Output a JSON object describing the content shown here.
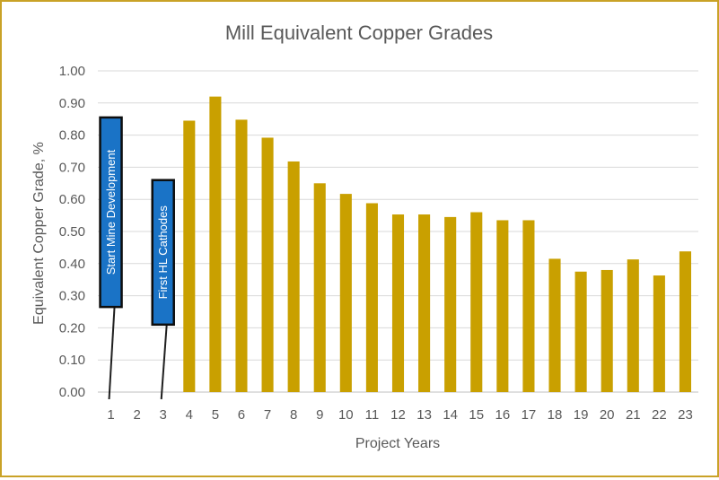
{
  "chart_data": {
    "type": "bar",
    "title": "Mill Equivalent Copper Grades",
    "xlabel": "Project Years",
    "ylabel": "Equivalent Copper Grade, %",
    "ylim": [
      0,
      1.0
    ],
    "yticks": [
      "0.00",
      "0.10",
      "0.20",
      "0.30",
      "0.40",
      "0.50",
      "0.60",
      "0.70",
      "0.80",
      "0.90",
      "1.00"
    ],
    "grid": true,
    "categories": [
      "1",
      "2",
      "3",
      "4",
      "5",
      "6",
      "7",
      "8",
      "9",
      "10",
      "11",
      "12",
      "13",
      "14",
      "15",
      "16",
      "17",
      "18",
      "19",
      "20",
      "21",
      "22",
      "23"
    ],
    "values": [
      null,
      null,
      null,
      0.845,
      0.92,
      0.848,
      0.792,
      0.718,
      0.65,
      0.617,
      0.588,
      0.553,
      0.553,
      0.545,
      0.56,
      0.535,
      0.535,
      0.415,
      0.375,
      0.38,
      0.413,
      0.363,
      0.438
    ],
    "bar_color": "#c9a000",
    "annotations": [
      {
        "text": "Start Mine Development",
        "category": "1",
        "y_top": 0.855,
        "y_bottom": 0.265,
        "box_color": "#1a73c6"
      },
      {
        "text": "First HL Cathodes",
        "category": "3",
        "y_top": 0.66,
        "y_bottom": 0.21,
        "box_color": "#1a73c6"
      }
    ]
  }
}
